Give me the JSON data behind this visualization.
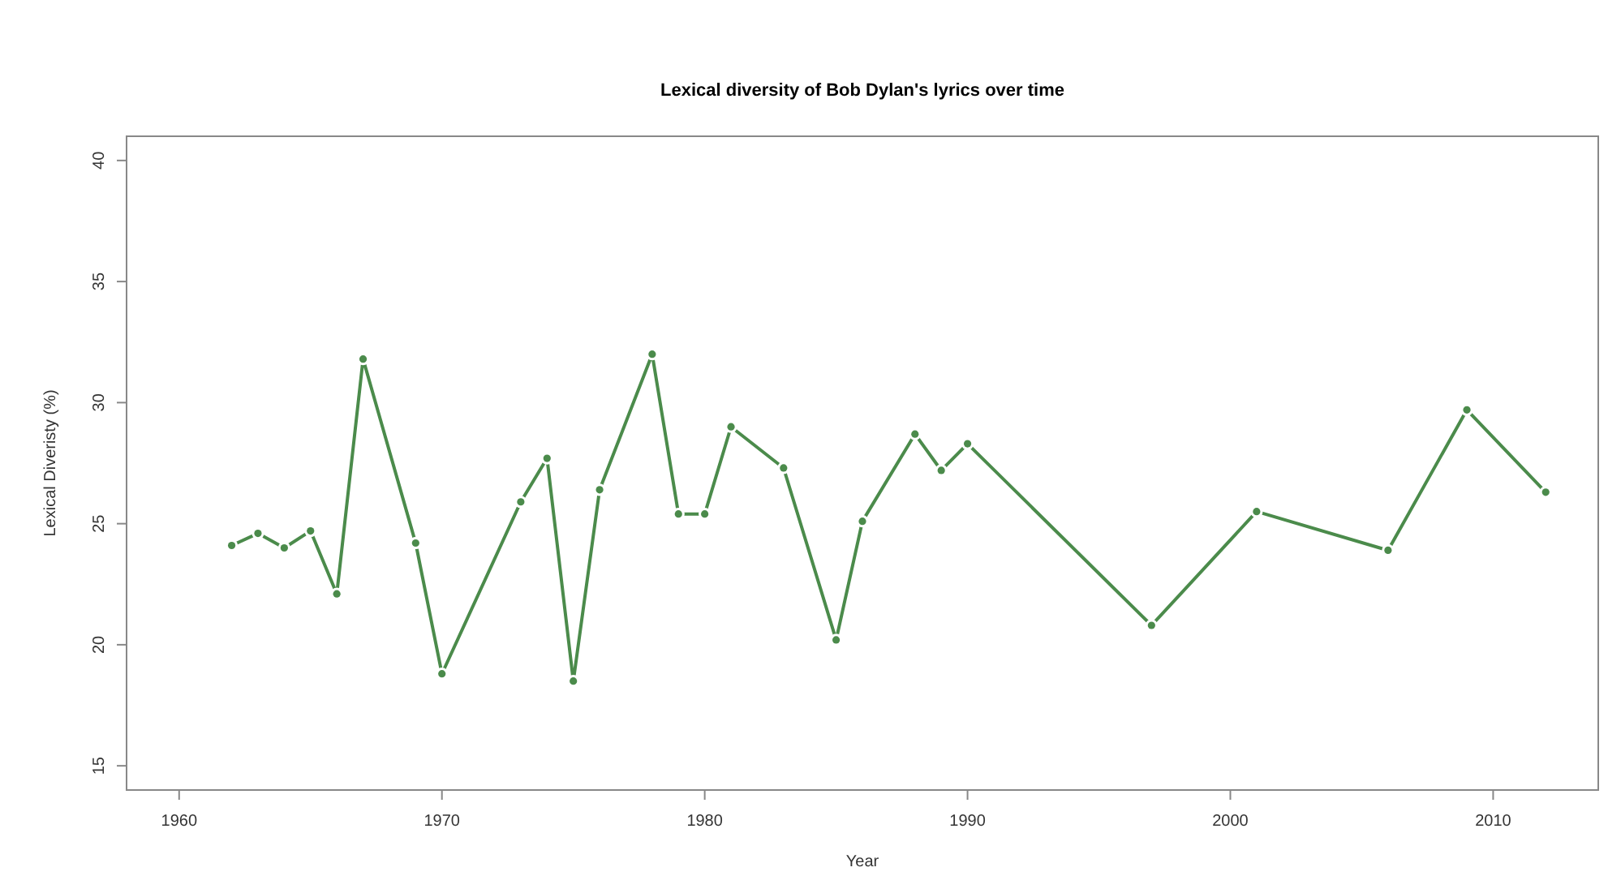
{
  "chart_data": {
    "type": "line",
    "title": "Lexical diversity of Bob Dylan's lyrics over time",
    "xlabel": "Year",
    "ylabel": "Lexical Diveristy (%)",
    "x": [
      1962,
      1963,
      1964,
      1965,
      1966,
      1967,
      1969,
      1970,
      1973,
      1974,
      1975,
      1976,
      1978,
      1979,
      1980,
      1981,
      1983,
      1985,
      1986,
      1988,
      1989,
      1990,
      1997,
      2001,
      2006,
      2009,
      2012
    ],
    "series": [
      {
        "color": "#4b8b4b",
        "values": [
          24.1,
          24.6,
          24.0,
          24.7,
          22.1,
          31.8,
          24.2,
          18.8,
          25.9,
          27.7,
          18.5,
          26.4,
          32.0,
          25.4,
          25.4,
          29.0,
          27.3,
          20.2,
          25.1,
          28.7,
          27.2,
          28.3,
          20.8,
          25.5,
          23.9,
          29.7,
          26.3
        ]
      }
    ],
    "xlim": [
      1958,
      2014
    ],
    "xticks": [
      1960,
      1970,
      1980,
      1990,
      2000,
      2010
    ],
    "ylim": [
      14,
      41
    ],
    "yticks": [
      15,
      20,
      25,
      30,
      35,
      40
    ],
    "marker": "circle",
    "line_style": "solid"
  }
}
